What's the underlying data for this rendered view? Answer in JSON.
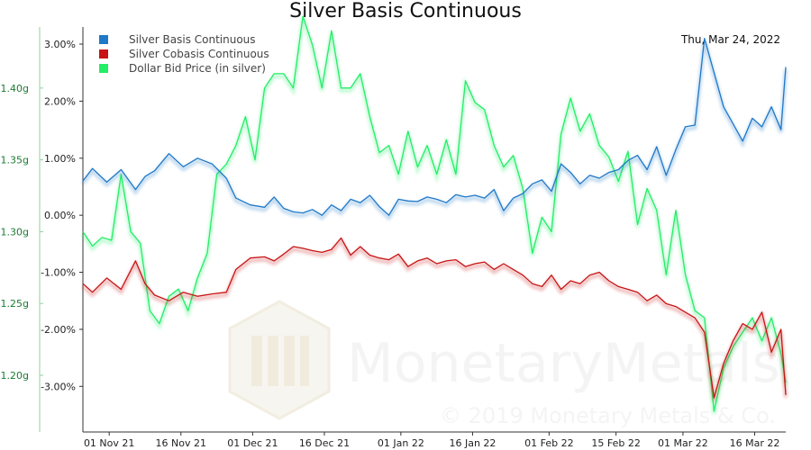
{
  "chart_data": {
    "type": "line",
    "title": "Silver Basis Continuous",
    "date_label": "Thu, Mar 24, 2022",
    "watermark": {
      "name": "MonetaryMetals",
      "copyright": "© 2019 Monetary Metals & Co."
    },
    "x_ticks": [
      "01 Nov 21",
      "16 Nov 21",
      "01 Dec 21",
      "16 Dec 21",
      "01 Jan 22",
      "16 Jan 22",
      "01 Feb 22",
      "15 Feb 22",
      "01 Mar 22",
      "16 Mar 22"
    ],
    "y_left": {
      "ticks": [
        "3.00%",
        "2.00%",
        "1.00%",
        "0.00%",
        "-1.00%",
        "-2.00%",
        "-3.00%"
      ],
      "range": [
        -3.8,
        3.3
      ]
    },
    "y_right": {
      "ticks": [
        "1.40g",
        "1.35g",
        "1.30g",
        "1.25g",
        "1.20g"
      ],
      "range": [
        1.1605,
        1.4425
      ]
    },
    "x_range": [
      0,
      147
    ],
    "legend_position": "top-left",
    "series": [
      {
        "name": "Silver Basis Continuous",
        "axis": "left",
        "color": "#1f78c8",
        "x": [
          0,
          2,
          5,
          8,
          11,
          13,
          15,
          18,
          21,
          24,
          27,
          30,
          32,
          35,
          38,
          40,
          42,
          44,
          46,
          48,
          50,
          52,
          54,
          56,
          58,
          60,
          62,
          64,
          66,
          68,
          70,
          72,
          74,
          76,
          78,
          80,
          82,
          84,
          86,
          88,
          90,
          92,
          94,
          96,
          98,
          100,
          102,
          104,
          106,
          108,
          110,
          112,
          114,
          116,
          118,
          120,
          122,
          124,
          126,
          128,
          130,
          132,
          134,
          136,
          138,
          140,
          142,
          144,
          146,
          147
        ],
        "values": [
          0.6,
          0.82,
          0.58,
          0.8,
          0.45,
          0.68,
          0.78,
          1.08,
          0.85,
          1.0,
          0.9,
          0.65,
          0.3,
          0.18,
          0.14,
          0.32,
          0.12,
          0.06,
          0.04,
          0.1,
          0.0,
          0.18,
          0.08,
          0.28,
          0.22,
          0.35,
          0.15,
          0.0,
          0.28,
          0.25,
          0.24,
          0.32,
          0.28,
          0.22,
          0.36,
          0.32,
          0.35,
          0.3,
          0.45,
          0.08,
          0.3,
          0.38,
          0.55,
          0.62,
          0.42,
          0.9,
          0.75,
          0.55,
          0.7,
          0.65,
          0.75,
          0.8,
          0.96,
          1.05,
          0.8,
          1.2,
          0.7,
          1.15,
          1.55,
          1.58,
          3.1,
          2.5,
          1.9,
          1.6,
          1.3,
          1.7,
          1.55,
          1.9,
          1.5,
          2.6
        ]
      },
      {
        "name": "Silver Cobasis Continuous",
        "axis": "left",
        "color": "#c81414",
        "x": [
          0,
          2,
          5,
          8,
          11,
          13,
          15,
          18,
          21,
          24,
          27,
          30,
          32,
          35,
          38,
          40,
          42,
          44,
          46,
          48,
          50,
          52,
          54,
          56,
          58,
          60,
          62,
          64,
          66,
          68,
          70,
          72,
          74,
          76,
          78,
          80,
          82,
          84,
          86,
          88,
          90,
          92,
          94,
          96,
          98,
          100,
          102,
          104,
          106,
          108,
          110,
          112,
          114,
          116,
          118,
          120,
          122,
          124,
          126,
          128,
          130,
          132,
          134,
          136,
          138,
          140,
          142,
          144,
          146,
          147
        ],
        "values": [
          -1.2,
          -1.35,
          -1.1,
          -1.3,
          -0.8,
          -1.2,
          -1.4,
          -1.5,
          -1.35,
          -1.42,
          -1.38,
          -1.35,
          -0.95,
          -0.75,
          -0.73,
          -0.8,
          -0.68,
          -0.55,
          -0.58,
          -0.62,
          -0.65,
          -0.6,
          -0.4,
          -0.7,
          -0.55,
          -0.7,
          -0.75,
          -0.78,
          -0.68,
          -0.9,
          -0.8,
          -0.75,
          -0.85,
          -0.8,
          -0.78,
          -0.9,
          -0.85,
          -0.82,
          -0.95,
          -0.85,
          -0.95,
          -1.05,
          -1.2,
          -1.25,
          -1.05,
          -1.3,
          -1.15,
          -1.2,
          -1.05,
          -1.0,
          -1.15,
          -1.25,
          -1.3,
          -1.35,
          -1.5,
          -1.4,
          -1.55,
          -1.6,
          -1.7,
          -1.8,
          -2.05,
          -3.2,
          -2.6,
          -2.2,
          -1.9,
          -2.0,
          -1.7,
          -2.4,
          -2.0,
          -3.15
        ]
      },
      {
        "name": "Dollar Bid Price (in silver)",
        "axis": "right",
        "color": "#22ee66",
        "x": [
          0,
          2,
          4,
          6,
          8,
          10,
          12,
          14,
          16,
          18,
          20,
          22,
          24,
          26,
          28,
          30,
          32,
          34,
          36,
          38,
          40,
          42,
          44,
          46,
          48,
          50,
          52,
          54,
          56,
          58,
          60,
          62,
          64,
          66,
          68,
          70,
          72,
          74,
          76,
          78,
          80,
          82,
          84,
          86,
          88,
          90,
          92,
          94,
          96,
          98,
          100,
          102,
          104,
          106,
          108,
          110,
          112,
          114,
          116,
          118,
          120,
          122,
          124,
          126,
          128,
          130,
          132,
          134,
          136,
          138,
          140,
          142,
          144,
          146,
          147
        ],
        "values": [
          1.3,
          1.29,
          1.296,
          1.294,
          1.34,
          1.3,
          1.292,
          1.245,
          1.236,
          1.255,
          1.26,
          1.245,
          1.268,
          1.285,
          1.34,
          1.347,
          1.36,
          1.38,
          1.35,
          1.4,
          1.41,
          1.41,
          1.4,
          1.45,
          1.43,
          1.4,
          1.44,
          1.4,
          1.4,
          1.41,
          1.38,
          1.355,
          1.36,
          1.34,
          1.37,
          1.345,
          1.36,
          1.34,
          1.364,
          1.34,
          1.405,
          1.39,
          1.385,
          1.36,
          1.345,
          1.353,
          1.33,
          1.285,
          1.31,
          1.3,
          1.368,
          1.393,
          1.37,
          1.382,
          1.36,
          1.352,
          1.335,
          1.356,
          1.305,
          1.33,
          1.315,
          1.27,
          1.315,
          1.27,
          1.245,
          1.24,
          1.175,
          1.205,
          1.22,
          1.23,
          1.24,
          1.224,
          1.24,
          1.215,
          1.195
        ]
      }
    ]
  }
}
